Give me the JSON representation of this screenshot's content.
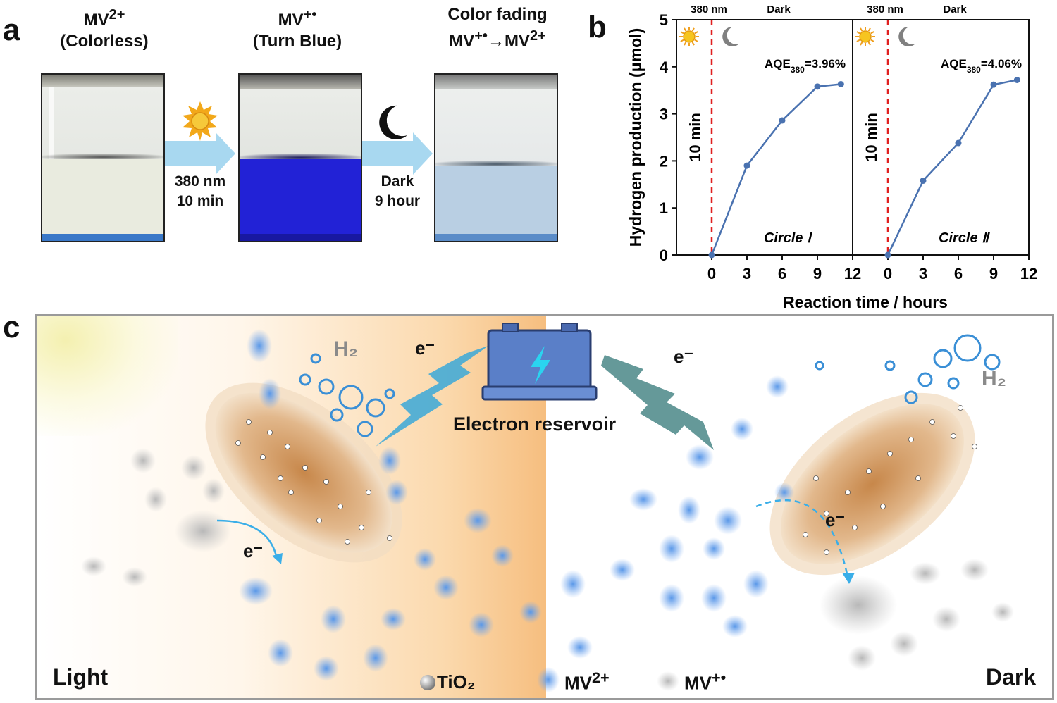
{
  "panel_a": {
    "letter": "a",
    "vials": [
      {
        "state_html": "MV<sup>2+</sup>",
        "desc": "(Colorless)"
      },
      {
        "state_html": "MV<sup>+•</sup>",
        "desc": "(Turn Blue)"
      },
      {
        "title": "Color fading",
        "state_html": "MV<sup>+•</sup>→MV<sup>2+</sup>"
      }
    ],
    "step1": {
      "line1": "380 nm",
      "line2": "10 min"
    },
    "step2": {
      "line1": "Dark",
      "line2": "9 hour"
    },
    "colors": {
      "colorless": "#e9ebdf",
      "blue": "#2222d6",
      "faded": "#b9cfe3",
      "arrow": "#a8d8f0"
    }
  },
  "panel_b": {
    "letter": "b",
    "top_labels": [
      "380 nm",
      "Dark",
      "380 nm",
      "Dark"
    ],
    "side_label": "10 min",
    "ylabel": "Hydrogen production (μmol)",
    "xlabel": "Reaction time / hours",
    "aqe_html": [
      "AQE<sub>380</sub>=3.96%",
      "AQE<sub>380</sub>=4.06%"
    ],
    "circle_labels": [
      "Circle Ⅰ",
      "Circle Ⅱ"
    ]
  },
  "chart_data": {
    "type": "line",
    "ylabel": "Hydrogen production (μmol)",
    "xlabel": "Reaction time / hours",
    "ylim": [
      0,
      5
    ],
    "xlim": [
      -3,
      12
    ],
    "x_ticks": [
      0,
      3,
      6,
      9,
      12
    ],
    "y_ticks": [
      0,
      1,
      2,
      3,
      4,
      5
    ],
    "light_dark_boundary_x": 0,
    "grid": false,
    "series": [
      {
        "x": [
          0,
          3,
          6,
          9,
          11
        ],
        "y": [
          0.0,
          1.9,
          2.86,
          3.58,
          3.63
        ]
      },
      {
        "x": [
          0,
          3,
          6,
          9,
          11
        ],
        "y": [
          0.0,
          1.58,
          2.38,
          3.62,
          3.72
        ]
      }
    ],
    "colors": {
      "line": "#4a72b0",
      "marker": "#4a72b0",
      "boundary": "#e02020"
    }
  },
  "panel_c": {
    "letter": "c",
    "light_label": "Light",
    "dark_label": "Dark",
    "reservoir_label": "Electron reservoir",
    "h2_left": "H₂",
    "h2_right": "H₂",
    "electron_label": "e⁻",
    "legend": {
      "tio2": "TiO₂",
      "mv2_html": "MV<sup>2+</sup>",
      "mv1_html": "MV<sup>+•</sup>"
    },
    "colors": {
      "warm": "#f7c48a",
      "blue": "#6aa8ea",
      "battery": "#5a7fc8",
      "bolt": "#2ad4f0"
    }
  }
}
